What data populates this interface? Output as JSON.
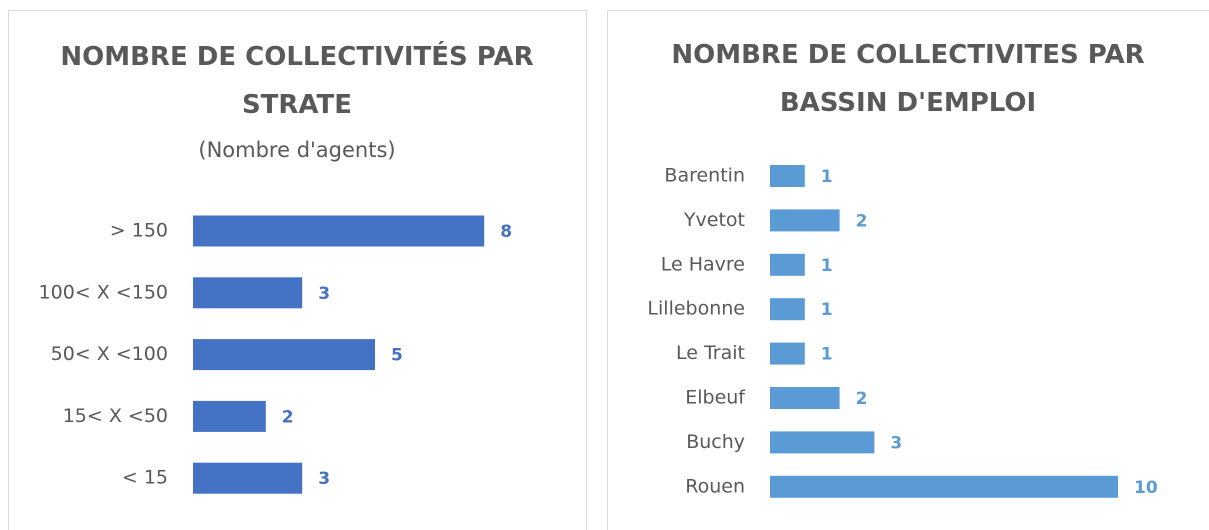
{
  "chart_data": [
    {
      "type": "bar",
      "orientation": "horizontal",
      "title": "NOMBRE DE COLLECTIVITÉS PAR STRATE",
      "subtitle": "(Nombre d'agents)",
      "categories": [
        "> 150",
        "100< X <150",
        "50< X <100",
        "15< X <50",
        "< 15"
      ],
      "values": [
        8,
        3,
        5,
        2,
        3
      ],
      "color": "#4472c4"
    },
    {
      "type": "bar",
      "orientation": "horizontal",
      "title": "NOMBRE DE COLLECTIVITES PAR BASSIN D'EMPLOI",
      "categories": [
        "Barentin",
        "Yvetot",
        "Le Havre",
        "Lillebonne",
        "Le Trait",
        "Elbeuf",
        "Buchy",
        "Rouen"
      ],
      "values": [
        1,
        2,
        1,
        1,
        1,
        2,
        3,
        10
      ],
      "color": "#5b9bd5"
    }
  ]
}
